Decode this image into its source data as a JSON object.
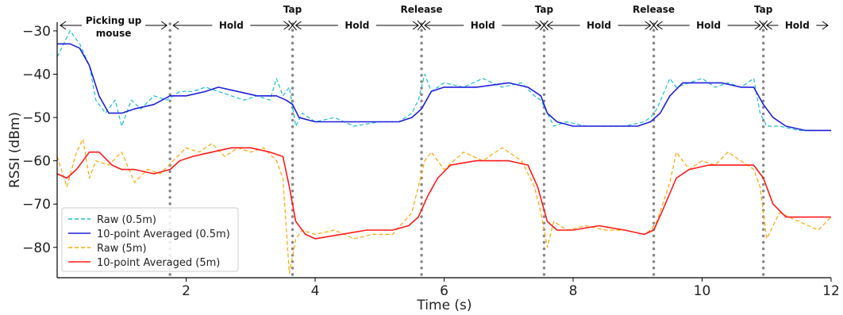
{
  "chart_data": {
    "type": "line",
    "xlabel": "Time (s)",
    "ylabel": "RSSI (dBm)",
    "xlim": [
      0,
      12
    ],
    "ylim": [
      -87,
      -28
    ],
    "x_ticks": [
      2,
      4,
      6,
      8,
      10,
      12
    ],
    "y_ticks": [
      -30,
      -40,
      -50,
      -60,
      -70,
      -80
    ],
    "grid": false,
    "legend_position": "lower-left",
    "colors": {
      "raw_near": "#17becf",
      "avg_near": "#1f1fd9",
      "raw_far": "#ffa500",
      "avg_far": "#ff1a1a",
      "event_line": "#888888"
    },
    "event_times": [
      1.75,
      3.65,
      5.65,
      7.55,
      9.25,
      10.95
    ],
    "phases": [
      {
        "label": "Picking up mouse",
        "x_start": 0,
        "x_end": 1.75
      },
      {
        "label": "Hold",
        "x_start": 1.75,
        "x_end": 3.65
      },
      {
        "label": "Tap",
        "x_at": 3.65
      },
      {
        "label": "Hold",
        "x_start": 3.65,
        "x_end": 5.65
      },
      {
        "label": "Release",
        "x_at": 5.65
      },
      {
        "label": "Hold",
        "x_start": 5.65,
        "x_end": 7.55
      },
      {
        "label": "Tap",
        "x_at": 7.55
      },
      {
        "label": "Hold",
        "x_start": 7.55,
        "x_end": 9.25
      },
      {
        "label": "Release",
        "x_at": 9.25
      },
      {
        "label": "Hold",
        "x_start": 9.25,
        "x_end": 10.95
      },
      {
        "label": "Tap",
        "x_at": 10.95
      },
      {
        "label": "Hold",
        "x_start": 10.95,
        "x_end": 12
      }
    ],
    "series": [
      {
        "name": "Raw (0.5m)",
        "style": "dashed",
        "color": "#17becf",
        "x": [
          0,
          0.2,
          0.35,
          0.5,
          0.6,
          0.75,
          0.9,
          1.0,
          1.15,
          1.3,
          1.5,
          1.7,
          1.9,
          2.1,
          2.3,
          2.5,
          2.7,
          2.9,
          3.1,
          3.3,
          3.4,
          3.5,
          3.6,
          3.7,
          3.8,
          4.0,
          4.3,
          4.6,
          5.0,
          5.3,
          5.5,
          5.6,
          5.7,
          5.8,
          6.0,
          6.3,
          6.6,
          6.9,
          7.2,
          7.4,
          7.5,
          7.6,
          7.7,
          7.9,
          8.2,
          8.5,
          8.8,
          9.1,
          9.2,
          9.3,
          9.5,
          9.6,
          9.8,
          10.0,
          10.2,
          10.4,
          10.6,
          10.8,
          10.9,
          11.0,
          11.2,
          11.5,
          11.8,
          12.0
        ],
        "y": [
          -36,
          -30,
          -33,
          -38,
          -46,
          -49,
          -46,
          -52,
          -46,
          -48,
          -45,
          -46,
          -44,
          -44,
          -43,
          -44,
          -45,
          -46,
          -45,
          -46,
          -41,
          -45,
          -43,
          -52,
          -49,
          -51,
          -50,
          -52,
          -51,
          -51,
          -49,
          -46,
          -40,
          -44,
          -42,
          -43,
          -41,
          -43,
          -42,
          -45,
          -46,
          -49,
          -52,
          -51,
          -52,
          -52,
          -52,
          -51,
          -50,
          -48,
          -41,
          -43,
          -42,
          -41,
          -43,
          -42,
          -43,
          -41,
          -49,
          -52,
          -52,
          -53,
          -53,
          -53
        ]
      },
      {
        "name": "10-point Averaged (0.5m)",
        "style": "solid",
        "color": "#1f1fd9",
        "x": [
          0,
          0.2,
          0.35,
          0.5,
          0.65,
          0.8,
          1.0,
          1.2,
          1.5,
          1.75,
          2.0,
          2.3,
          2.5,
          2.8,
          3.1,
          3.4,
          3.55,
          3.65,
          3.75,
          4.0,
          4.5,
          5.0,
          5.3,
          5.5,
          5.65,
          5.8,
          6.0,
          6.5,
          7.0,
          7.3,
          7.5,
          7.6,
          7.75,
          8.0,
          8.5,
          9.0,
          9.2,
          9.35,
          9.5,
          9.7,
          10.0,
          10.3,
          10.6,
          10.8,
          10.95,
          11.1,
          11.3,
          11.6,
          12.0
        ],
        "y": [
          -33,
          -33,
          -34,
          -38,
          -45,
          -49,
          -49,
          -48,
          -47,
          -45,
          -45,
          -44,
          -43,
          -44,
          -45,
          -45,
          -46,
          -47,
          -50,
          -51,
          -51,
          -51,
          -51,
          -50,
          -48,
          -44,
          -43,
          -43,
          -42,
          -43,
          -45,
          -49,
          -51,
          -52,
          -52,
          -52,
          -51,
          -49,
          -45,
          -42,
          -42,
          -42,
          -43,
          -43,
          -47,
          -50,
          -52,
          -53,
          -53
        ]
      },
      {
        "name": "Raw (5m)",
        "style": "dashed",
        "color": "#ffa500",
        "x": [
          0,
          0.15,
          0.3,
          0.4,
          0.5,
          0.6,
          0.8,
          1.0,
          1.2,
          1.4,
          1.6,
          1.8,
          2.0,
          2.2,
          2.4,
          2.6,
          2.8,
          3.0,
          3.2,
          3.4,
          3.5,
          3.6,
          3.7,
          3.8,
          4.0,
          4.3,
          4.6,
          4.9,
          5.2,
          5.5,
          5.6,
          5.7,
          5.8,
          6.0,
          6.3,
          6.6,
          6.9,
          7.2,
          7.4,
          7.5,
          7.6,
          7.7,
          7.9,
          8.2,
          8.5,
          8.8,
          9.1,
          9.2,
          9.3,
          9.5,
          9.6,
          9.8,
          10.0,
          10.2,
          10.4,
          10.6,
          10.8,
          10.9,
          11.0,
          11.2,
          11.5,
          11.8,
          12.0
        ],
        "y": [
          -59,
          -66,
          -58,
          -55,
          -64,
          -60,
          -61,
          -58,
          -65,
          -62,
          -63,
          -60,
          -57,
          -58,
          -56,
          -59,
          -57,
          -58,
          -57,
          -60,
          -64,
          -86,
          -78,
          -76,
          -77,
          -76,
          -78,
          -77,
          -77,
          -72,
          -66,
          -60,
          -58,
          -62,
          -58,
          -60,
          -57,
          -60,
          -66,
          -72,
          -80,
          -74,
          -76,
          -75,
          -76,
          -76,
          -77,
          -76,
          -74,
          -65,
          -58,
          -62,
          -60,
          -61,
          -58,
          -60,
          -62,
          -66,
          -78,
          -72,
          -74,
          -76,
          -73
        ]
      },
      {
        "name": "10-point Averaged (5m)",
        "style": "solid",
        "color": "#ff1a1a",
        "x": [
          0,
          0.15,
          0.3,
          0.5,
          0.65,
          0.85,
          1.0,
          1.2,
          1.5,
          1.75,
          1.9,
          2.1,
          2.4,
          2.7,
          3.0,
          3.3,
          3.5,
          3.6,
          3.7,
          3.85,
          4.0,
          4.4,
          4.8,
          5.2,
          5.45,
          5.6,
          5.75,
          5.9,
          6.1,
          6.5,
          7.0,
          7.3,
          7.45,
          7.6,
          7.75,
          8.0,
          8.4,
          8.8,
          9.1,
          9.25,
          9.4,
          9.6,
          9.8,
          10.1,
          10.5,
          10.8,
          10.95,
          11.1,
          11.3,
          11.6,
          12.0
        ],
        "y": [
          -63,
          -64,
          -62,
          -58,
          -58,
          -61,
          -62,
          -62,
          -63,
          -62,
          -60,
          -59,
          -58,
          -57,
          -57,
          -58,
          -59,
          -66,
          -74,
          -77,
          -78,
          -77,
          -76,
          -76,
          -75,
          -73,
          -68,
          -64,
          -61,
          -60,
          -60,
          -61,
          -66,
          -74,
          -76,
          -76,
          -75,
          -76,
          -77,
          -76,
          -71,
          -64,
          -62,
          -61,
          -61,
          -61,
          -64,
          -70,
          -73,
          -73,
          -73
        ]
      }
    ]
  }
}
